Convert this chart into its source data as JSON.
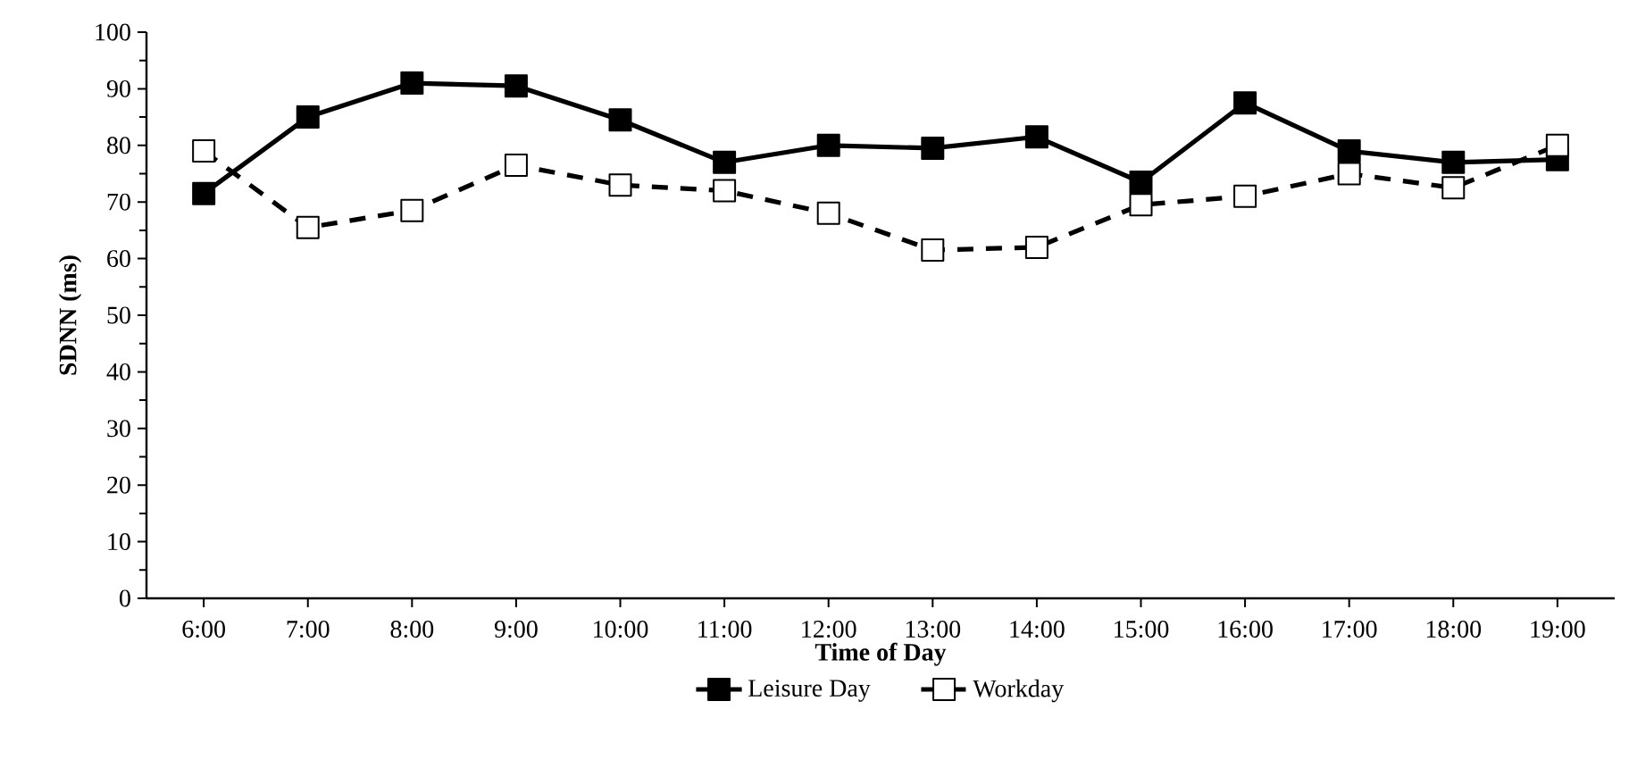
{
  "chart_data": {
    "type": "line",
    "xlabel": "Time of Day",
    "ylabel": "SDNN (ms)",
    "categories": [
      "6:00",
      "7:00",
      "8:00",
      "9:00",
      "10:00",
      "11:00",
      "12:00",
      "13:00",
      "14:00",
      "15:00",
      "16:00",
      "17:00",
      "18:00",
      "19:00"
    ],
    "series": [
      {
        "name": "Leisure Day",
        "color": "#000000",
        "line_style": "solid",
        "values": [
          71.5,
          85,
          91,
          90.5,
          84.5,
          77,
          80,
          79.5,
          81.5,
          73.5,
          87.5,
          79,
          77,
          77.5
        ]
      },
      {
        "name": "Workday",
        "color": "#000000",
        "line_style": "dashed",
        "values": [
          79,
          65.5,
          68.5,
          76.5,
          73,
          72,
          68,
          61.5,
          62,
          69.5,
          71,
          75,
          72.5,
          80
        ]
      }
    ],
    "ylim": [
      0,
      100
    ],
    "yticks": [
      0,
      10,
      20,
      30,
      40,
      50,
      60,
      70,
      80,
      90,
      100
    ],
    "marker": "square",
    "grid": false,
    "legend": "bottom"
  }
}
